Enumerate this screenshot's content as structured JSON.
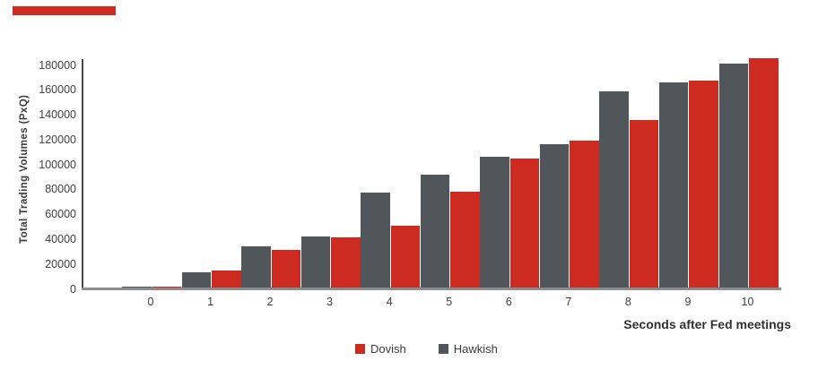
{
  "chart_data": {
    "type": "bar",
    "title": "",
    "categories": [
      "0",
      "1",
      "2",
      "3",
      "4",
      "5",
      "6",
      "7",
      "8",
      "9",
      "10"
    ],
    "series": [
      {
        "name": "Dovish",
        "color": "#cd2a20",
        "values": [
          400,
          14000,
          30000,
          40000,
          50000,
          77000,
          104000,
          118000,
          135000,
          166000,
          184000
        ]
      },
      {
        "name": "Hawkish",
        "color": "#51565a",
        "values": [
          1000,
          12000,
          33000,
          41000,
          76000,
          91000,
          105000,
          115000,
          158000,
          165000,
          180000
        ]
      }
    ],
    "xlabel": "Seconds after Fed meetings",
    "ylabel": "Total Trading Volumes (PxQ)",
    "ylim": [
      0,
      190000
    ],
    "y_ticks": [
      0,
      20000,
      40000,
      60000,
      80000,
      100000,
      120000,
      140000,
      160000,
      180000
    ],
    "grid": false,
    "legend_position": "bottom",
    "bar_order_note": "Hawkish bar drawn left of each tick, Dovish bar drawn right"
  },
  "decorations": {
    "accent_bar_color": "#cd2a20"
  },
  "colors": {
    "dovish_red": "#cd2a20",
    "hawkish_gray": "#51565a",
    "axis_line": "#47494b",
    "baseline": "#8a8c8f",
    "text": "#3e3e3e"
  }
}
